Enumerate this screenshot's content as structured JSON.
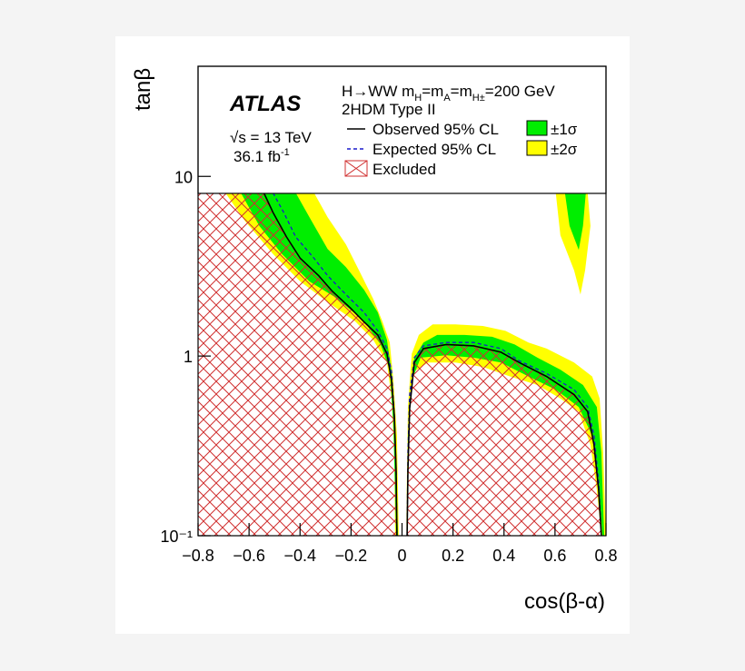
{
  "chart_data": {
    "type": "contour",
    "y_label": "tanβ",
    "x_label": "cos(β-α)",
    "experiment": "ATLAS",
    "process_parts": [
      "H→WW m",
      "H",
      "=m",
      "A",
      "=m",
      "H±",
      "=200 GeV"
    ],
    "model": "2HDM Type II",
    "energy": "√s = 13 TeV",
    "lumi_parts": [
      "36.1 fb",
      "-1"
    ],
    "ylog": true,
    "xlim": [
      -0.8,
      0.8
    ],
    "ylim": [
      0.1,
      41
    ],
    "xticks": [
      {
        "value": -0.8,
        "label": "−0.8"
      },
      {
        "value": -0.6,
        "label": "−0.6"
      },
      {
        "value": -0.4,
        "label": "−0.4"
      },
      {
        "value": -0.2,
        "label": "−0.2"
      },
      0,
      0.2,
      0.4,
      0.6,
      0.8
    ],
    "yticks": [
      {
        "value": 0.1,
        "label": "10⁻¹"
      },
      1,
      10
    ],
    "series": [
      {
        "name": "Observed 95% CL",
        "style": "line",
        "color": "#000000",
        "x": [
          -0.542,
          -0.506,
          -0.453,
          -0.399,
          -0.327,
          -0.274,
          -0.202,
          -0.149,
          -0.095,
          -0.059,
          -0.041,
          -0.03,
          -0.023,
          -0.02,
          null,
          0.02,
          0.023,
          0.03,
          0.048,
          0.084,
          0.174,
          0.281,
          0.388,
          0.46,
          0.567,
          0.675,
          0.728,
          0.753,
          0.771,
          0.782
        ],
        "y": [
          8.1,
          6.3,
          4.6,
          3.5,
          2.8,
          2.3,
          1.85,
          1.55,
          1.31,
          1.03,
          0.73,
          0.46,
          0.23,
          0.1,
          null,
          0.1,
          0.23,
          0.51,
          0.92,
          1.1,
          1.16,
          1.14,
          1.05,
          0.92,
          0.77,
          0.61,
          0.49,
          0.32,
          0.18,
          0.1
        ]
      },
      {
        "name": "Expected 95% CL",
        "style": "dashed",
        "color": "#1a1acc",
        "x": [
          -0.506,
          -0.464,
          -0.417,
          -0.345,
          -0.292,
          -0.22,
          -0.149,
          -0.095,
          -0.059,
          -0.041,
          -0.03,
          -0.023,
          -0.02,
          null,
          0.02,
          0.023,
          0.03,
          0.048,
          0.084,
          0.174,
          0.281,
          0.388,
          0.46,
          0.567,
          0.675,
          0.728,
          0.753,
          0.771,
          0.782
        ],
        "y": [
          8.1,
          6.3,
          4.6,
          3.5,
          2.8,
          2.2,
          1.75,
          1.38,
          1.1,
          0.82,
          0.46,
          0.23,
          0.1,
          null,
          0.1,
          0.29,
          0.61,
          0.98,
          1.14,
          1.19,
          1.19,
          1.1,
          0.94,
          0.8,
          0.65,
          0.52,
          0.36,
          0.2,
          0.1
        ]
      },
      {
        "name": "Excluded",
        "style": "hatch",
        "color": "#d03030",
        "x": [
          -0.8,
          -0.8,
          -0.542,
          -0.506,
          -0.453,
          -0.399,
          -0.327,
          -0.274,
          -0.202,
          -0.149,
          -0.095,
          -0.059,
          -0.041,
          -0.03,
          -0.023,
          -0.02,
          null,
          0.02,
          0.023,
          0.03,
          0.048,
          0.084,
          0.174,
          0.281,
          0.388,
          0.46,
          0.567,
          0.675,
          0.728,
          0.753,
          0.771,
          0.782
        ],
        "y": [
          0.1,
          8.1,
          8.1,
          6.3,
          4.6,
          3.5,
          2.8,
          2.3,
          1.85,
          1.55,
          1.31,
          1.03,
          0.73,
          0.46,
          0.23,
          0.1,
          null,
          0.1,
          0.23,
          0.51,
          0.92,
          1.1,
          1.16,
          1.14,
          1.05,
          0.92,
          0.77,
          0.61,
          0.49,
          0.32,
          0.18,
          0.1
        ]
      },
      {
        "name": "±1σ",
        "style": "fill",
        "color": "#00ee00",
        "x": [
          -0.632,
          -0.56,
          -0.471,
          -0.363,
          -0.256,
          -0.149,
          -0.084,
          -0.048,
          -0.034,
          -0.023,
          -0.016,
          -0.027,
          -0.041,
          -0.059,
          -0.095,
          -0.149,
          -0.22,
          -0.292,
          -0.363,
          -0.417,
          null,
          0.02,
          0.023,
          0.038,
          0.073,
          0.174,
          0.281,
          0.388,
          0.496,
          0.603,
          0.693,
          0.746,
          0.771,
          0.786,
          0.793,
          0.782,
          0.764,
          0.71,
          0.621,
          0.531,
          0.442,
          0.353,
          0.245,
          0.138,
          0.084,
          0.048,
          0.03,
          0.02,
          null,
          0.639,
          0.657,
          0.693,
          0.71,
          0.721
        ],
        "y": [
          8.1,
          5.3,
          3.7,
          2.6,
          2.1,
          1.56,
          1.16,
          0.84,
          0.41,
          0.1,
          0.1,
          0.41,
          0.82,
          1.23,
          1.75,
          2.34,
          3.12,
          3.94,
          5.93,
          8.1,
          null,
          0.1,
          0.36,
          0.73,
          0.98,
          1.01,
          0.98,
          0.92,
          0.77,
          0.65,
          0.52,
          0.36,
          0.2,
          0.1,
          0.1,
          0.29,
          0.52,
          0.69,
          0.84,
          0.98,
          1.16,
          1.28,
          1.31,
          1.31,
          1.19,
          0.98,
          0.52,
          0.1,
          null,
          8.1,
          5.3,
          3.9,
          5.3,
          8.1
        ]
      },
      {
        "name": "±2σ",
        "style": "fill",
        "color": "#ffff00",
        "x": [
          -0.693,
          -0.614,
          -0.506,
          -0.399,
          -0.292,
          -0.184,
          -0.113,
          -0.059,
          -0.041,
          -0.03,
          -0.027,
          -0.013,
          -0.02,
          -0.034,
          -0.048,
          -0.077,
          -0.113,
          -0.166,
          -0.22,
          -0.292,
          -0.345,
          null,
          0.016,
          0.023,
          0.027,
          0.048,
          0.102,
          0.209,
          0.317,
          0.424,
          0.531,
          0.621,
          0.693,
          0.739,
          0.764,
          0.782,
          0.8,
          0.789,
          0.775,
          0.746,
          0.675,
          0.567,
          0.496,
          0.406,
          0.317,
          0.209,
          0.12,
          0.066,
          0.038,
          0.023,
          0.016,
          null,
          0.603,
          0.621,
          0.675,
          0.7,
          0.718,
          0.739,
          0.728
        ],
        "y": [
          8.1,
          5.6,
          3.7,
          2.6,
          2.0,
          1.56,
          1.23,
          0.92,
          0.58,
          0.29,
          0.1,
          0.1,
          0.36,
          0.73,
          1.19,
          1.56,
          2.08,
          2.95,
          4.18,
          5.93,
          8.1,
          null,
          0.1,
          0.29,
          0.52,
          0.82,
          0.92,
          0.92,
          0.87,
          0.77,
          0.69,
          0.58,
          0.49,
          0.32,
          0.18,
          0.1,
          0.1,
          0.29,
          0.58,
          0.77,
          0.92,
          1.1,
          1.19,
          1.38,
          1.47,
          1.5,
          1.5,
          1.31,
          1.03,
          0.52,
          0.1,
          null,
          8.1,
          4.7,
          3.0,
          2.2,
          3.0,
          5.3,
          8.1
        ]
      }
    ]
  }
}
